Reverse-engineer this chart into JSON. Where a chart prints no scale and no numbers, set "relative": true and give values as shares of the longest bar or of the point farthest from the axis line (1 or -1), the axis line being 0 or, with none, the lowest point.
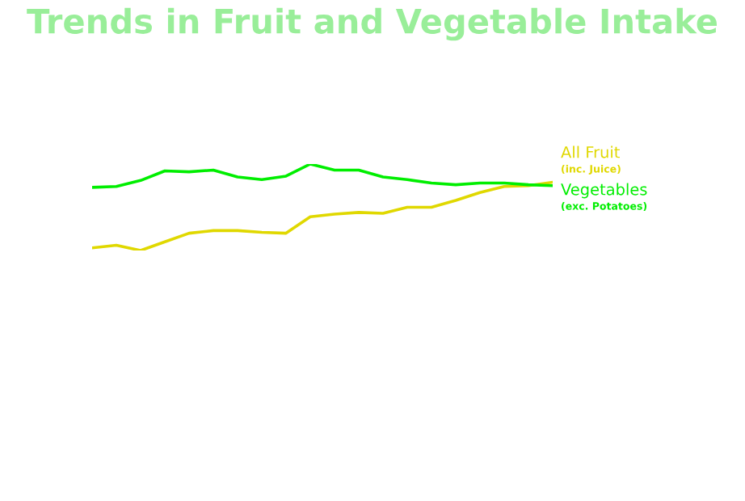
{
  "chart_data": {
    "type": "line",
    "title": "Trends in Fruit and Vegetable Intake",
    "relative": true,
    "legend": false,
    "marker": "none",
    "line_style": "solid",
    "categories": [
      null,
      null,
      null,
      null,
      null,
      null,
      null,
      null,
      null,
      null,
      null,
      null,
      null,
      null,
      null,
      null,
      null,
      null,
      null,
      null
    ],
    "series": [
      {
        "name": "All Fruit\n(inc. Juice)",
        "color": "#e0d800",
        "values": [
          0.03,
          0.06,
          0.0,
          0.1,
          0.2,
          0.23,
          0.23,
          0.21,
          0.2,
          0.39,
          0.42,
          0.44,
          0.43,
          0.5,
          0.5,
          0.58,
          0.67,
          0.74,
          0.75,
          0.79
        ]
      },
      {
        "name": "Vegetables\n(exc. Potatoes)",
        "color": "#00ee00",
        "values": [
          0.73,
          0.74,
          0.81,
          0.92,
          0.91,
          0.93,
          0.85,
          0.82,
          0.86,
          1.0,
          0.93,
          0.93,
          0.85,
          0.82,
          0.78,
          0.76,
          0.78,
          0.78,
          0.76,
          0.75
        ]
      }
    ]
  }
}
